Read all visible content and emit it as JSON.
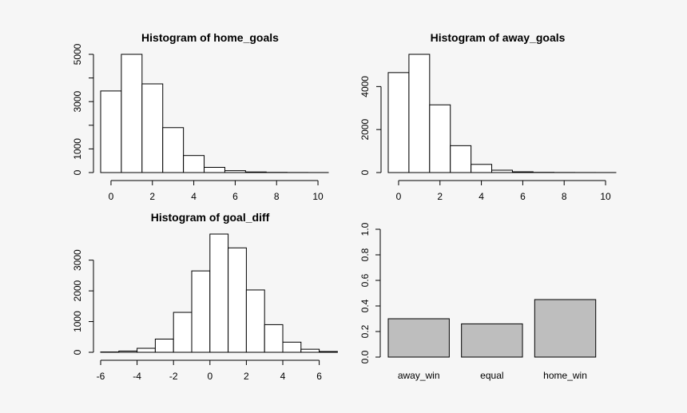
{
  "background": "#f6f6f6",
  "chart_data": [
    {
      "type": "bar",
      "subtype": "histogram",
      "title": "Histogram of home_goals",
      "xlabel": "",
      "ylabel": "",
      "bin_edges": [
        -0.5,
        0.5,
        1.5,
        2.5,
        3.5,
        4.5,
        5.5,
        6.5,
        7.5,
        8.5,
        9.5,
        10.5
      ],
      "values": [
        3450,
        5000,
        3750,
        1900,
        720,
        220,
        80,
        25,
        8,
        3,
        1
      ],
      "xlim": [
        -0.5,
        10.5
      ],
      "ylim": [
        0,
        5000
      ],
      "xticks": [
        0,
        2,
        4,
        6,
        8,
        10
      ],
      "yticks": [
        0,
        1000,
        3000,
        5000
      ],
      "ytick_labels": [
        "0",
        "1000",
        "3000",
        "5000"
      ],
      "yminor": [
        2000,
        4000
      ],
      "bar_fill": "#ffffff",
      "grid": false
    },
    {
      "type": "bar",
      "subtype": "histogram",
      "title": "Histogram of away_goals",
      "xlabel": "",
      "ylabel": "",
      "bin_edges": [
        -0.5,
        0.5,
        1.5,
        2.5,
        3.5,
        4.5,
        5.5,
        6.5,
        7.5,
        8.5,
        9.5,
        10.5
      ],
      "values": [
        4650,
        5500,
        3150,
        1250,
        380,
        110,
        35,
        10,
        4,
        2,
        1
      ],
      "xlim": [
        -0.5,
        10.5
      ],
      "ylim": [
        0,
        5500
      ],
      "xticks": [
        0,
        2,
        4,
        6,
        8,
        10
      ],
      "yticks": [
        0,
        2000,
        4000
      ],
      "ytick_labels": [
        "0",
        "2000",
        "4000"
      ],
      "yminor": [],
      "bar_fill": "#ffffff",
      "grid": false
    },
    {
      "type": "bar",
      "subtype": "histogram",
      "title": "Histogram of goal_diff",
      "xlabel": "",
      "ylabel": "",
      "bin_edges": [
        -6,
        -5,
        -4,
        -3,
        -2,
        -1,
        0,
        1,
        2,
        3,
        4,
        5,
        6,
        7
      ],
      "values": [
        10,
        40,
        130,
        430,
        1300,
        2650,
        3850,
        3400,
        2030,
        900,
        330,
        100,
        25
      ],
      "xlim": [
        -6,
        6.5
      ],
      "ylim": [
        0,
        3850
      ],
      "xticks": [
        -6,
        -4,
        -2,
        0,
        2,
        4,
        6
      ],
      "yticks": [
        0,
        1000,
        2000,
        3000
      ],
      "ytick_labels": [
        "0",
        "1000",
        "2000",
        "3000"
      ],
      "yminor": [],
      "bar_fill": "#ffffff",
      "grid": false
    },
    {
      "type": "bar",
      "title": "",
      "xlabel": "",
      "ylabel": "",
      "categories": [
        "away_win",
        "equal",
        "home_win"
      ],
      "values": [
        0.3,
        0.26,
        0.45
      ],
      "ylim": [
        0,
        1
      ],
      "yticks": [
        0,
        0.2,
        0.4,
        0.6,
        0.8,
        1
      ],
      "ytick_labels": [
        "0.0",
        "0.2",
        "0.4",
        "0.6",
        "0.8",
        "1.0"
      ],
      "bar_fill": "#bebebe",
      "grid": false
    }
  ]
}
